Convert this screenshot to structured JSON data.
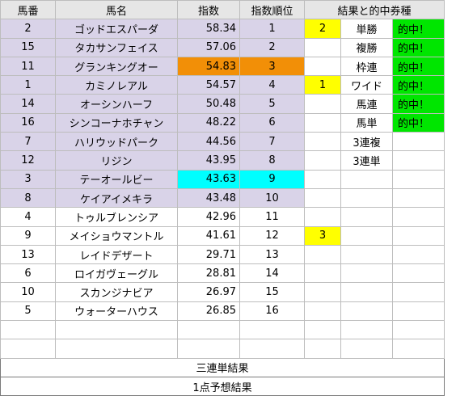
{
  "headers": {
    "num": "馬番",
    "name": "馬名",
    "index": "指数",
    "rank": "指数順位",
    "results": "結果と的中券種"
  },
  "rows": [
    {
      "num": "2",
      "name": "ゴッドエスパーダ",
      "index": "58.34",
      "rank": "1",
      "mark": "2",
      "bet": "単勝",
      "hit": "的中！"
    },
    {
      "num": "15",
      "name": "タカサンフェイス",
      "index": "57.06",
      "rank": "2",
      "mark": "",
      "bet": "複勝",
      "hit": "的中！"
    },
    {
      "num": "11",
      "name": "グランキングオー",
      "index": "54.83",
      "rank": "3",
      "mark": "",
      "bet": "枠連",
      "hit": "的中！"
    },
    {
      "num": "1",
      "name": "カミノレアル",
      "index": "54.57",
      "rank": "4",
      "mark": "1",
      "bet": "ワイド",
      "hit": "的中！"
    },
    {
      "num": "14",
      "name": "オーシンハーフ",
      "index": "50.48",
      "rank": "5",
      "mark": "",
      "bet": "馬連",
      "hit": "的中！"
    },
    {
      "num": "16",
      "name": "シンコーナホチャン",
      "index": "48.22",
      "rank": "6",
      "mark": "",
      "bet": "馬単",
      "hit": "的中！"
    },
    {
      "num": "7",
      "name": "ハリウッドパーク",
      "index": "44.56",
      "rank": "7",
      "mark": "",
      "bet": "3連複",
      "hit": ""
    },
    {
      "num": "12",
      "name": "リジン",
      "index": "43.95",
      "rank": "8",
      "mark": "",
      "bet": "3連単",
      "hit": ""
    },
    {
      "num": "3",
      "name": "テーオールビー",
      "index": "43.63",
      "rank": "9",
      "mark": "",
      "bet": "",
      "hit": ""
    },
    {
      "num": "8",
      "name": "ケイアイメキラ",
      "index": "43.48",
      "rank": "10",
      "mark": "",
      "bet": "",
      "hit": ""
    },
    {
      "num": "4",
      "name": "トゥルブレンシア",
      "index": "42.96",
      "rank": "11",
      "mark": "",
      "bet": "",
      "hit": ""
    },
    {
      "num": "9",
      "name": "メイショウマントル",
      "index": "41.61",
      "rank": "12",
      "mark": "3",
      "bet": "",
      "hit": ""
    },
    {
      "num": "13",
      "name": "レイドデザート",
      "index": "29.71",
      "rank": "13",
      "mark": "",
      "bet": "",
      "hit": ""
    },
    {
      "num": "6",
      "name": "ロイガヴェーグル",
      "index": "28.81",
      "rank": "14",
      "mark": "",
      "bet": "",
      "hit": ""
    },
    {
      "num": "10",
      "name": "スカンジナビア",
      "index": "26.97",
      "rank": "15",
      "mark": "",
      "bet": "",
      "hit": ""
    },
    {
      "num": "5",
      "name": "ウォーターハウス",
      "index": "26.85",
      "rank": "16",
      "mark": "",
      "bet": "",
      "hit": ""
    }
  ],
  "footer": {
    "trifecta_result": "三連単結果",
    "one_point_result": "1点予想結果"
  },
  "colors": {
    "header_bg": "#e6e6e6",
    "lavender": "#d9d3e8",
    "orange": "#f28f07",
    "cyan": "#00ffff",
    "yellow": "#ffff00",
    "green": "#00e600"
  }
}
